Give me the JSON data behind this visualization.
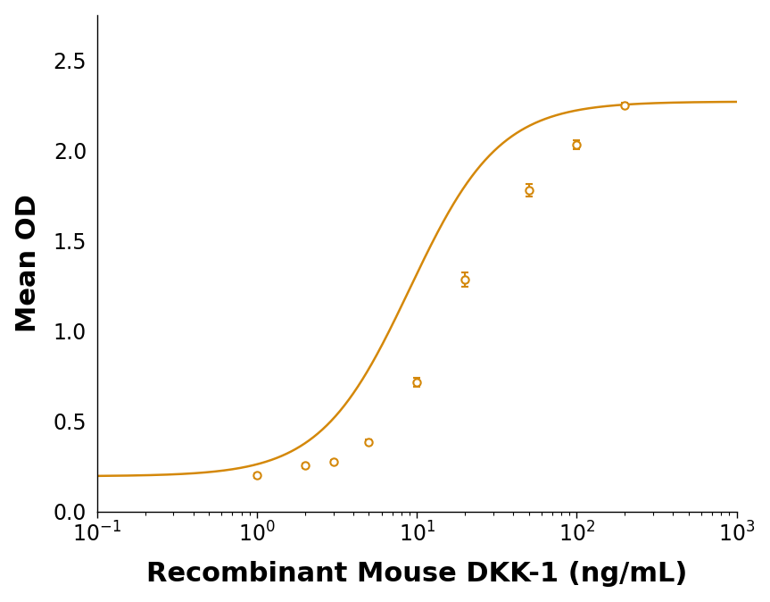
{
  "x_data": [
    1.0,
    2.0,
    3.0,
    5.0,
    10.0,
    20.0,
    50.0,
    100.0,
    200.0
  ],
  "y_data": [
    0.2,
    0.255,
    0.275,
    0.385,
    0.715,
    1.285,
    1.78,
    2.03,
    2.25
  ],
  "y_err": [
    0.012,
    0.012,
    0.012,
    0.012,
    0.025,
    0.04,
    0.035,
    0.025,
    0.012
  ],
  "color": "#D4880A",
  "xlabel": "Recombinant Mouse DKK-1 (ng/mL)",
  "ylabel": "Mean OD",
  "xlim_log": [
    -1,
    3
  ],
  "ylim": [
    0.0,
    2.75
  ],
  "yticks": [
    0.0,
    0.5,
    1.0,
    1.5,
    2.0,
    2.5
  ],
  "background_color": "#ffffff",
  "marker": "o",
  "marker_size": 6,
  "line_width": 1.8,
  "xlabel_fontsize": 22,
  "ylabel_fontsize": 22,
  "tick_fontsize": 17,
  "bottom_fixed": 0.195,
  "top_fixed": 2.27,
  "ec50_fixed": 9.0,
  "hill_fixed": 1.55
}
